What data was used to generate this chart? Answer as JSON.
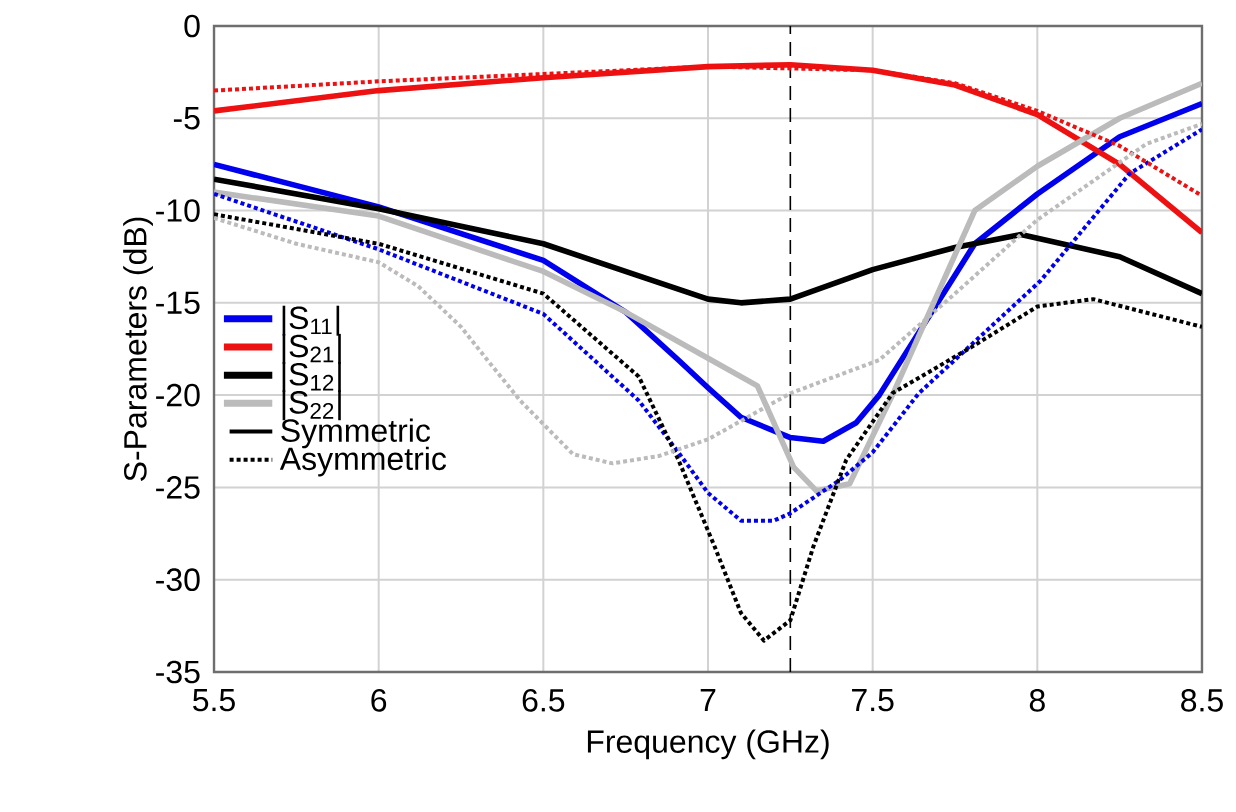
{
  "chart_data": {
    "type": "line",
    "xlabel": "Frequency (GHz)",
    "ylabel": "S-Parameters (dB)",
    "xlim": [
      5.5,
      8.5
    ],
    "ylim": [
      -35,
      0
    ],
    "xticks": [
      5.5,
      6,
      6.5,
      7,
      7.5,
      8,
      8.5
    ],
    "yticks": [
      -35,
      -30,
      -25,
      -20,
      -15,
      -10,
      -5,
      0
    ],
    "grid": true,
    "legend": "left",
    "marker": "none",
    "ref_lines": [
      {
        "axis": "x",
        "value": 7.25,
        "color": "#000000",
        "line_style": "dashed"
      }
    ],
    "annotations": [
      "Symmetric",
      "Asymmetric"
    ],
    "series": [
      {
        "name": "|S$_{11}$|",
        "color": "#0000ee",
        "line_style": "solid",
        "x": [
          5.5,
          6.0,
          6.5,
          6.75,
          6.91,
          7.0,
          7.1,
          7.25,
          7.35,
          7.45,
          7.52,
          7.75,
          7.81,
          8.0,
          8.25,
          8.5
        ],
        "values": [
          -7.5,
          -9.8,
          -12.7,
          -15.5,
          -18.1,
          -19.6,
          -21.2,
          -22.3,
          -22.5,
          -21.5,
          -20.0,
          -13.5,
          -11.8,
          -9.1,
          -6.0,
          -4.2
        ]
      },
      {
        "name": "|S$_{21}$|",
        "color": "#ee1111",
        "line_style": "solid",
        "x": [
          5.5,
          6.0,
          6.5,
          7.0,
          7.25,
          7.5,
          7.75,
          8.0,
          8.25,
          8.5
        ],
        "values": [
          -4.6,
          -3.5,
          -2.8,
          -2.2,
          -2.1,
          -2.4,
          -3.2,
          -4.8,
          -7.5,
          -11.2
        ]
      },
      {
        "name": "|S$_{12}$|",
        "color": "#000000",
        "line_style": "solid",
        "x": [
          5.5,
          6.0,
          6.5,
          7.0,
          7.1,
          7.25,
          7.5,
          7.75,
          7.95,
          8.25,
          8.5
        ],
        "values": [
          -8.3,
          -9.9,
          -11.8,
          -14.8,
          -15.0,
          -14.8,
          -13.2,
          -12.0,
          -11.3,
          -12.5,
          -14.5
        ]
      },
      {
        "name": "|S$_{22}$|",
        "color": "#bbbbbb",
        "line_style": "solid",
        "x": [
          5.5,
          6.0,
          6.25,
          6.5,
          6.75,
          7.0,
          7.15,
          7.26,
          7.33,
          7.43,
          7.56,
          7.81,
          8.0,
          8.25,
          8.5
        ],
        "values": [
          -9.0,
          -10.3,
          -11.8,
          -13.3,
          -15.5,
          -18.0,
          -19.5,
          -23.9,
          -25.2,
          -24.8,
          -20.0,
          -10.0,
          -7.6,
          -5.0,
          -3.1
        ]
      },
      {
        "color": "#0000ee",
        "line_style": "dotted",
        "x": [
          5.5,
          6.0,
          6.5,
          6.79,
          6.91,
          7.0,
          7.1,
          7.2,
          7.25,
          7.4,
          7.5,
          7.64,
          8.01,
          8.28,
          8.5
        ],
        "values": [
          -9.1,
          -12.1,
          -15.6,
          -20.3,
          -23.1,
          -25.3,
          -26.8,
          -26.8,
          -26.4,
          -24.6,
          -23.1,
          -19.9,
          -13.8,
          -8.0,
          -5.6
        ]
      },
      {
        "color": "#ee1111",
        "line_style": "dotted",
        "x": [
          5.5,
          6.0,
          6.5,
          7.0,
          7.5,
          7.75,
          8.0,
          8.25,
          8.5
        ],
        "values": [
          -3.5,
          -3.0,
          -2.6,
          -2.2,
          -2.4,
          -3.1,
          -4.6,
          -6.5,
          -9.2
        ]
      },
      {
        "color": "#000000",
        "line_style": "dotted",
        "x": [
          5.5,
          6.0,
          6.5,
          6.79,
          6.91,
          7.02,
          7.1,
          7.17,
          7.25,
          7.32,
          7.42,
          7.56,
          7.8,
          8.0,
          8.17,
          8.5
        ],
        "values": [
          -10.2,
          -11.8,
          -14.5,
          -19.0,
          -23.5,
          -28.2,
          -31.8,
          -33.3,
          -32.2,
          -28.2,
          -23.5,
          -19.9,
          -17.4,
          -15.2,
          -14.8,
          -16.3
        ]
      },
      {
        "color": "#bbbbbb",
        "line_style": "dotted",
        "x": [
          5.5,
          5.75,
          6.0,
          6.12,
          6.25,
          6.33,
          6.43,
          6.59,
          6.71,
          6.85,
          7.0,
          7.25,
          7.52,
          7.75,
          8.0,
          8.33,
          8.5
        ],
        "values": [
          -10.4,
          -11.8,
          -12.8,
          -14.1,
          -16.3,
          -18.1,
          -20.3,
          -23.2,
          -23.7,
          -23.3,
          -22.4,
          -19.9,
          -18.1,
          -14.5,
          -10.5,
          -6.4,
          -5.3
        ]
      }
    ]
  }
}
